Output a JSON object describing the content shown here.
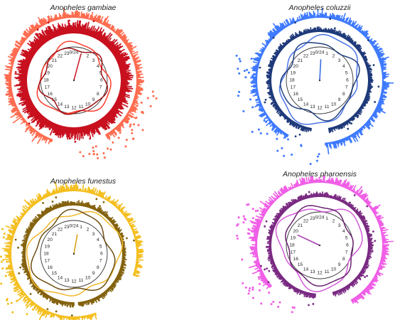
{
  "chart_data": [
    {
      "type": "circular",
      "title": "Anopheles gambiae",
      "colors": {
        "outer": "#ff6a4d",
        "inner": "#c8101e",
        "line_light": "#ff3d2e",
        "line_dark": "#9e0f14",
        "vector": "#cc2233"
      },
      "hour_labels": [
        "0/24",
        "1",
        "2",
        "3",
        "4",
        "5",
        "6",
        "7",
        "8",
        "9",
        "10",
        "11",
        "12",
        "13",
        "14",
        "15",
        "16",
        "17",
        "18",
        "19",
        "20",
        "21",
        "22",
        "23"
      ],
      "vector_angle_deg": 15,
      "vector_length": 0.8
    },
    {
      "type": "circular",
      "title": "Anopheles coluzzii",
      "colors": {
        "outer": "#3c78ff",
        "inner": "#1f3a7a",
        "line_light": "#4a74e8",
        "line_dark": "#22407f",
        "vector": "#3a6ee0"
      },
      "hour_labels": [
        "0/24",
        "1",
        "2",
        "3",
        "4",
        "5",
        "6",
        "7",
        "8",
        "9",
        "10",
        "11",
        "12",
        "13",
        "14",
        "15",
        "16",
        "17",
        "18",
        "19",
        "20",
        "21",
        "22",
        "23"
      ],
      "vector_angle_deg": 3,
      "vector_length": 0.62
    },
    {
      "type": "circular",
      "title": "Anopheles funestus",
      "colors": {
        "outer": "#f4be1e",
        "inner": "#84620e",
        "line_light": "#f0b82a",
        "line_dark": "#6e4f12",
        "vector": "#d9a21a"
      },
      "hour_labels": [
        "0/24",
        "1",
        "2",
        "3",
        "4",
        "5",
        "6",
        "7",
        "8",
        "9",
        "10",
        "11",
        "12",
        "13",
        "14",
        "15",
        "16",
        "17",
        "18",
        "19",
        "20",
        "21",
        "22",
        "23"
      ],
      "vector_angle_deg": 10,
      "vector_length": 0.58
    },
    {
      "type": "circular",
      "title": "Anopheles pharoensis",
      "colors": {
        "outer": "#f05ce6",
        "inner": "#7a2a82",
        "line_light": "#d45ad8",
        "line_dark": "#6a2470",
        "vector": "#a83cb0"
      },
      "hour_labels": [
        "0/24",
        "1",
        "2",
        "3",
        "4",
        "5",
        "6",
        "7",
        "8",
        "9",
        "10",
        "11",
        "12",
        "13",
        "14",
        "15",
        "16",
        "17",
        "18",
        "19",
        "20",
        "21",
        "22",
        "23"
      ],
      "vector_angle_deg": -65,
      "vector_length": 0.72
    }
  ]
}
